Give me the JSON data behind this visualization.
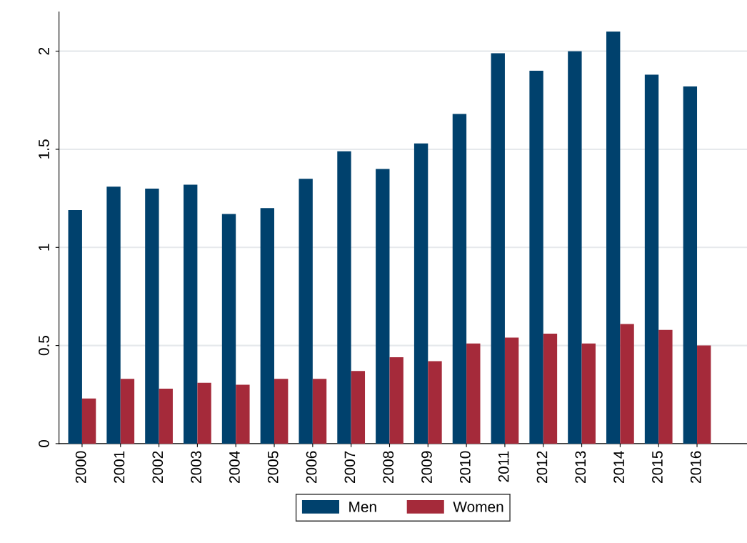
{
  "chart_data": {
    "type": "bar",
    "categories": [
      "2000",
      "2001",
      "2002",
      "2003",
      "2004",
      "2005",
      "2006",
      "2007",
      "2008",
      "2009",
      "2010",
      "2011",
      "2012",
      "2013",
      "2014",
      "2015",
      "2016"
    ],
    "series": [
      {
        "name": "Men",
        "color": "#00416d",
        "values": [
          1.19,
          1.31,
          1.3,
          1.32,
          1.17,
          1.2,
          1.35,
          1.49,
          1.4,
          1.53,
          1.68,
          1.99,
          1.9,
          2.0,
          2.1,
          1.88,
          1.82
        ]
      },
      {
        "name": "Women",
        "color": "#a52a3a",
        "values": [
          0.23,
          0.33,
          0.28,
          0.31,
          0.3,
          0.33,
          0.33,
          0.37,
          0.44,
          0.42,
          0.51,
          0.54,
          0.56,
          0.51,
          0.61,
          0.58,
          0.5
        ]
      }
    ],
    "ylim": [
      0,
      2.2
    ],
    "yticks": [
      0,
      0.5,
      1,
      1.5,
      2
    ],
    "grid": "y",
    "legend": "bottom"
  }
}
